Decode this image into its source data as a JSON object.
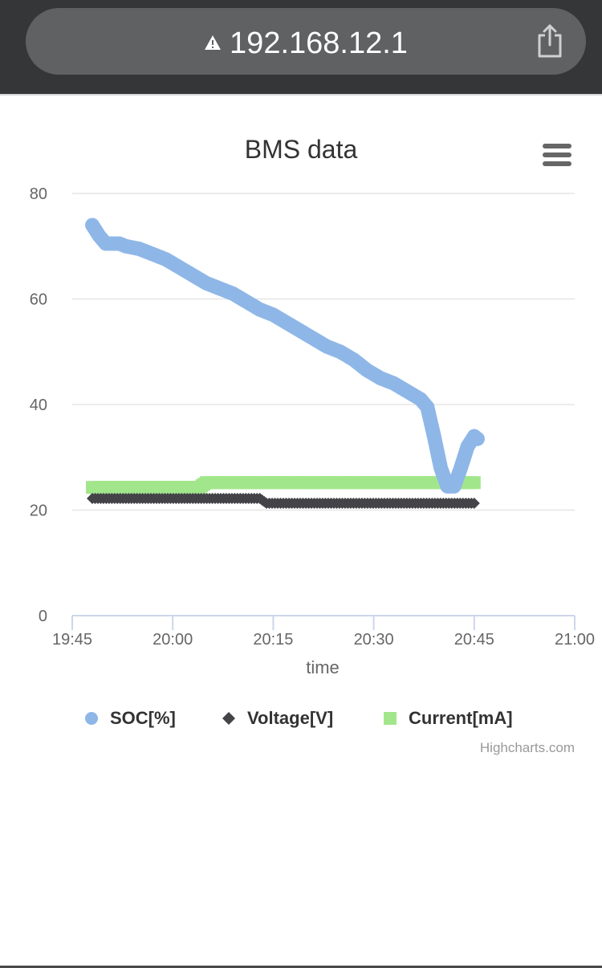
{
  "browser": {
    "url": "192.168.12.1",
    "warning_icon": "warning-triangle-icon",
    "share_icon": "share-icon"
  },
  "menu_icon": "hamburger-menu-icon",
  "credit": "Highcharts.com",
  "chart_data": {
    "type": "scatter",
    "title": "BMS data",
    "xlabel": "time",
    "ylabel": "",
    "xlim": [
      "19:45",
      "21:00"
    ],
    "ylim": [
      0,
      80
    ],
    "x_ticks": [
      "19:45",
      "20:00",
      "20:15",
      "20:30",
      "20:45",
      "21:00"
    ],
    "y_ticks": [
      0,
      20,
      40,
      60,
      80
    ],
    "grid": true,
    "legend_position": "bottom",
    "colors": {
      "soc": "#8eb7e8",
      "voltage": "#434348",
      "current": "#a2e68c"
    },
    "series": [
      {
        "name": "SOC[%]",
        "marker": "circle",
        "points": [
          [
            "19:48",
            74
          ],
          [
            "19:49",
            72
          ],
          [
            "19:50",
            70.5
          ],
          [
            "19:51",
            70.5
          ],
          [
            "19:52",
            70.5
          ],
          [
            "19:53",
            70
          ],
          [
            "19:55",
            69.5
          ],
          [
            "19:57",
            68.5
          ],
          [
            "19:59",
            67.5
          ],
          [
            "20:01",
            66
          ],
          [
            "20:03",
            64.5
          ],
          [
            "20:05",
            63
          ],
          [
            "20:07",
            62
          ],
          [
            "20:09",
            61
          ],
          [
            "20:11",
            59.5
          ],
          [
            "20:13",
            58
          ],
          [
            "20:15",
            57
          ],
          [
            "20:17",
            55.5
          ],
          [
            "20:19",
            54
          ],
          [
            "20:21",
            52.5
          ],
          [
            "20:23",
            51
          ],
          [
            "20:25",
            50
          ],
          [
            "20:27",
            48.5
          ],
          [
            "20:29",
            46.5
          ],
          [
            "20:31",
            45
          ],
          [
            "20:33",
            44
          ],
          [
            "20:35",
            42.5
          ],
          [
            "20:37",
            41
          ],
          [
            "20:38",
            39.5
          ],
          [
            "20:39",
            34
          ],
          [
            "20:40",
            28
          ],
          [
            "20:41",
            24.5
          ],
          [
            "20:42",
            24.5
          ],
          [
            "20:43",
            28
          ],
          [
            "20:44",
            32
          ],
          [
            "20:45",
            34
          ],
          [
            "20:45:30",
            33.5
          ]
        ]
      },
      {
        "name": "Voltage[V]",
        "marker": "diamond",
        "points": [
          [
            "19:48",
            22.2
          ],
          [
            "20:13",
            22.2
          ],
          [
            "20:14",
            21.3
          ],
          [
            "20:45",
            21.3
          ]
        ]
      },
      {
        "name": "Current[mA]",
        "marker": "square",
        "points": [
          [
            "19:48",
            24.3
          ],
          [
            "20:04",
            24.3
          ],
          [
            "20:05",
            25.2
          ],
          [
            "20:45",
            25.2
          ]
        ]
      }
    ]
  }
}
